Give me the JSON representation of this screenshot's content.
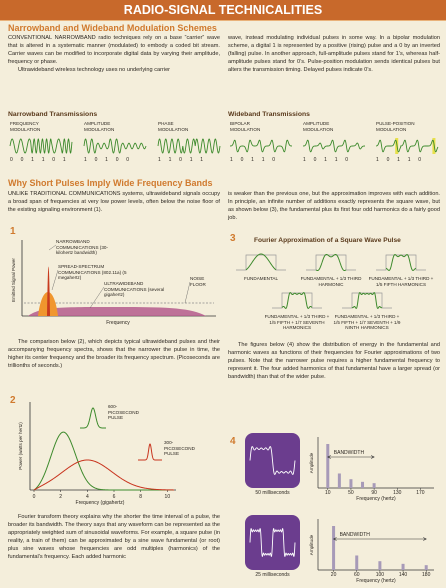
{
  "header": {
    "title": "RADIO-SIGNAL TECHNICALITIES"
  },
  "section1": {
    "heading": "Narrowband and Wideband Modulation Schemes",
    "left_paragraphs": [
      "CONVENTIONAL NARROWBAND radio techniques rely on a base “carrier” wave that is altered in a systematic manner (modulated) to embody a coded bit stream. Carrier waves can be modified to incorporate digital data by varying their amplitude, frequency or phase.",
      "Ultrawideband wireless technology uses no underlying carrier"
    ],
    "right_paragraphs": [
      "wave, instead modulating individual pulses in some way. In a bipolar modulation scheme, a digital 1 is represented by a positive (rising) pulse and a 0 by an inverted (falling) pulse. In another approach, full-amplitude pulses stand for 1’s, whereas half-amplitude pulses stand for 0’s. Pulse-position modulation sends identical pulses but alters the transmission timing. Delayed pulses indicate 0’s."
    ]
  },
  "narrowband": {
    "heading": "Narrowband Transmissions",
    "schemes": [
      {
        "label": "FREQUENCY MODULATION",
        "bits": "0 0 1 1 0 1"
      },
      {
        "label": "AMPLITUDE MODULATION",
        "bits": "1 0 1 0 0"
      },
      {
        "label": "PHASE MODULATION",
        "bits": "1 1 0 1 1"
      }
    ]
  },
  "wideband": {
    "heading": "Wideband Transmissions",
    "schemes": [
      {
        "label": "BIPOLAR MODULATION",
        "bits": "1 0 1 1 0"
      },
      {
        "label": "AMPLITUDE MODULATION",
        "bits": "1 0 1 1 0"
      },
      {
        "label": "PULSE-POSITION MODULATION",
        "bits": "1 0 1 1 0"
      }
    ]
  },
  "section2": {
    "heading": "Why Short Pulses Imply Wide Frequency Bands",
    "intro": "UNLIKE TRADITIONAL COMMUNICATIONS systems, ultrawideband signals occupy a broad span of frequencies at very low power levels, often below the noise floor of the existing signaling environment (1).",
    "comparison": "The comparison below (2), which depicts typical ultrawideband pulses and their accompanying frequency spectra, shows that the narrower the pulse in time, the higher its center frequency and the broader its frequency spectrum. (Picoseconds are trillionths of seconds.)",
    "fourier": "Fourier transform theory explains why the shorter the time interval of a pulse, the broader its bandwidth. The theory says that any waveform can be represented as the appropriately weighted sum of sinusoidal waveforms. For example, a square pulse (in reality, a train of them) can be approximated by a sine wave fundamental (or root) plus sine waves whose frequencies are odd multiples (harmonics) of the fundamental’s frequency. Each added harmonic",
    "continuation": "is weaker than the previous one, but the approximation improves with each addition. In principle, an infinite number of additions exactly represents the square wave, but as shown below (3), the fundamental plus its first four odd harmonics do a fairly good job.",
    "figures_text": "The figures below (4) show the distribution of energy in the fundamental and harmonic waves as functions of their frequencies for Fourier approximations of two pulses. Note that the narrower pulse requires a higher fundamental frequency to represent it. The four added harmonics of that fundamental have a larger spread (or bandwidth) than that of the wider pulse."
  },
  "figure1": {
    "number": "1",
    "y_label": "Emitted Signal Power",
    "x_label": "Frequency",
    "narrowband": "NARROWBAND COMMUNICATIONS (30-kilohertz bandwidth)",
    "spread": "SPREAD-SPECTRUM COMMUNICATIONS (802.11a) (5 megahertz)",
    "ultrawideband": "ULTRAWIDEBAND COMMUNICATIONS (several gigahertz)",
    "noise": "NOISE FLOOR"
  },
  "figure2": {
    "number": "2",
    "y_label": "Power (watts per hertz)",
    "x_label": "Frequency (gigahertz)",
    "xticks": [
      0,
      2,
      4,
      6,
      8,
      10
    ],
    "xlim": [
      0,
      10.5
    ],
    "pulse_600": "600-PICOSECOND PULSE",
    "pulse_300": "300-PICOSECOND PULSE"
  },
  "figure3": {
    "number": "3",
    "title": "Fourier Approximation of a Square Wave Pulse",
    "panels": [
      "FUNDAMENTAL",
      "FUNDAMENTAL + 1/3 THIRD HARMONIC",
      "FUNDAMENTAL + 1/3 THIRD + 1/5 FIFTH HARMONICS",
      "FUNDAMENTAL + 1/3 THIRD + 1/5 FIFTH + 1/7 SEVENTH HARMONICS",
      "FUNDAMENTAL + 1/3 THIRD + 1/5 FIFTH + 1/7 SEVENTH + 1/9 NINTH HARMONICS"
    ]
  },
  "figure4": {
    "number": "4",
    "y_label": "Amplitude",
    "x_label": "Frequency (hertz)",
    "bandwidth": "BANDWIDTH",
    "panels": [
      {
        "pulse": "50 milliseconds",
        "xlim": [
          0,
          190
        ],
        "xticks": [
          10,
          50,
          90,
          130,
          170
        ],
        "x": [
          10,
          30,
          50,
          70,
          90
        ],
        "values": [
          1,
          0.33,
          0.2,
          0.14,
          0.11
        ]
      },
      {
        "pulse": "25 milliseconds",
        "xlim": [
          0,
          190
        ],
        "xticks": [
          20,
          60,
          100,
          140,
          180
        ],
        "x": [
          20,
          60,
          100,
          140,
          180
        ],
        "values": [
          1,
          0.33,
          0.2,
          0.14,
          0.11
        ]
      }
    ]
  }
}
